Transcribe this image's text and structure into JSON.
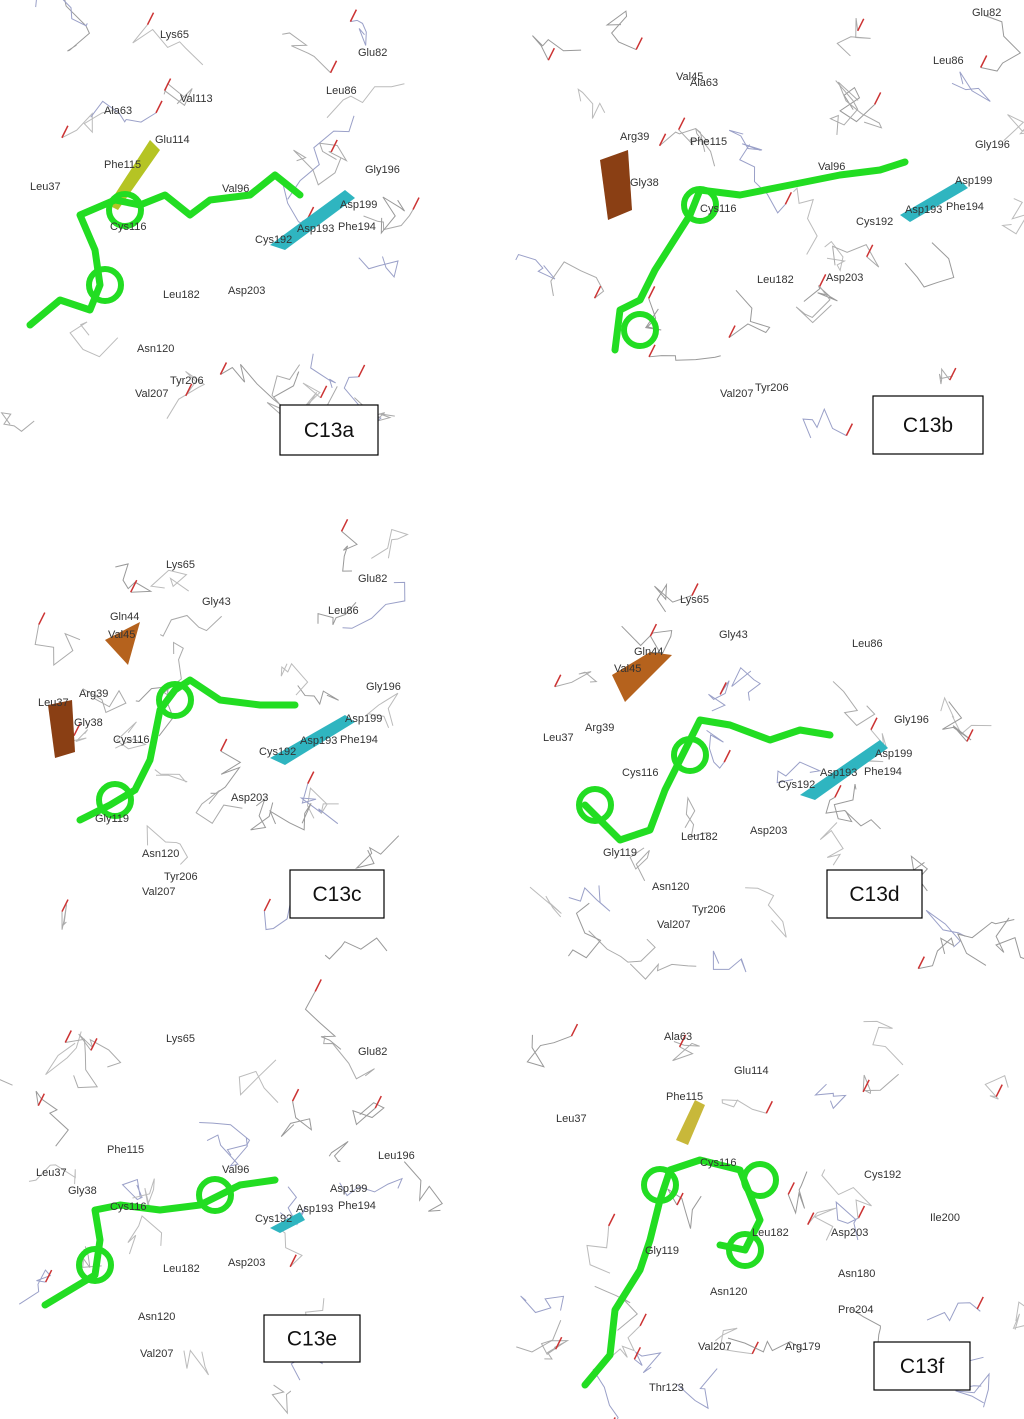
{
  "panels": [
    {
      "label": "C13a",
      "residues": [
        "Lys65",
        "Glu82",
        "Leu86",
        "Val113",
        "Ala63",
        "Glu114",
        "Phe115",
        "Leu37",
        "Val96",
        "Gly196",
        "Asp199",
        "Asp193",
        "Phe194",
        "Cys192",
        "Cys116",
        "Leu182",
        "Asp203",
        "Asn120",
        "Tyr206",
        "Val207"
      ]
    },
    {
      "label": "C13b",
      "residues": [
        "Glu82",
        "Leu86",
        "Val45",
        "Ala63",
        "Arg39",
        "Phe115",
        "Gly38",
        "Cys116",
        "Val96",
        "Gly196",
        "Asp199",
        "Phe194",
        "Asp193",
        "Cys192",
        "Leu182",
        "Asp203",
        "Tyr206",
        "Val207"
      ]
    },
    {
      "label": "C13c",
      "residues": [
        "Lys65",
        "Glu82",
        "Gly43",
        "Leu86",
        "Gln44",
        "Val45",
        "Arg39",
        "Leu37",
        "Gly38",
        "Cys116",
        "Gly196",
        "Asp199",
        "Cys192",
        "Asp193",
        "Phe194",
        "Asp203",
        "Gly119",
        "Asn120",
        "Tyr206",
        "Val207"
      ]
    },
    {
      "label": "C13d",
      "residues": [
        "Lys65",
        "Gly43",
        "Leu86",
        "Gln44",
        "Val45",
        "Arg39",
        "Leu37",
        "Cys116",
        "Gly196",
        "Asp199",
        "Cys192",
        "Asp193",
        "Phe194",
        "Leu182",
        "Asp203",
        "Gly119",
        "Asn120",
        "Tyr206",
        "Val207"
      ]
    },
    {
      "label": "C13e",
      "residues": [
        "Lys65",
        "Glu82",
        "Phe115",
        "Leu196",
        "Leu37",
        "Val96",
        "Gly38",
        "Cys116",
        "Asp199",
        "Asp193",
        "Phe194",
        "Cys192",
        "Leu182",
        "Asp203",
        "Asn120",
        "Val207"
      ]
    },
    {
      "label": "C13f",
      "residues": [
        "Ala63",
        "Glu114",
        "Phe115",
        "Leu37",
        "Cys116",
        "Cys192",
        "Ile200",
        "Asp203",
        "Leu182",
        "Gly119",
        "Asn180",
        "Pro204",
        "Asn120",
        "Val207",
        "Arg179",
        "Thr123"
      ]
    }
  ]
}
